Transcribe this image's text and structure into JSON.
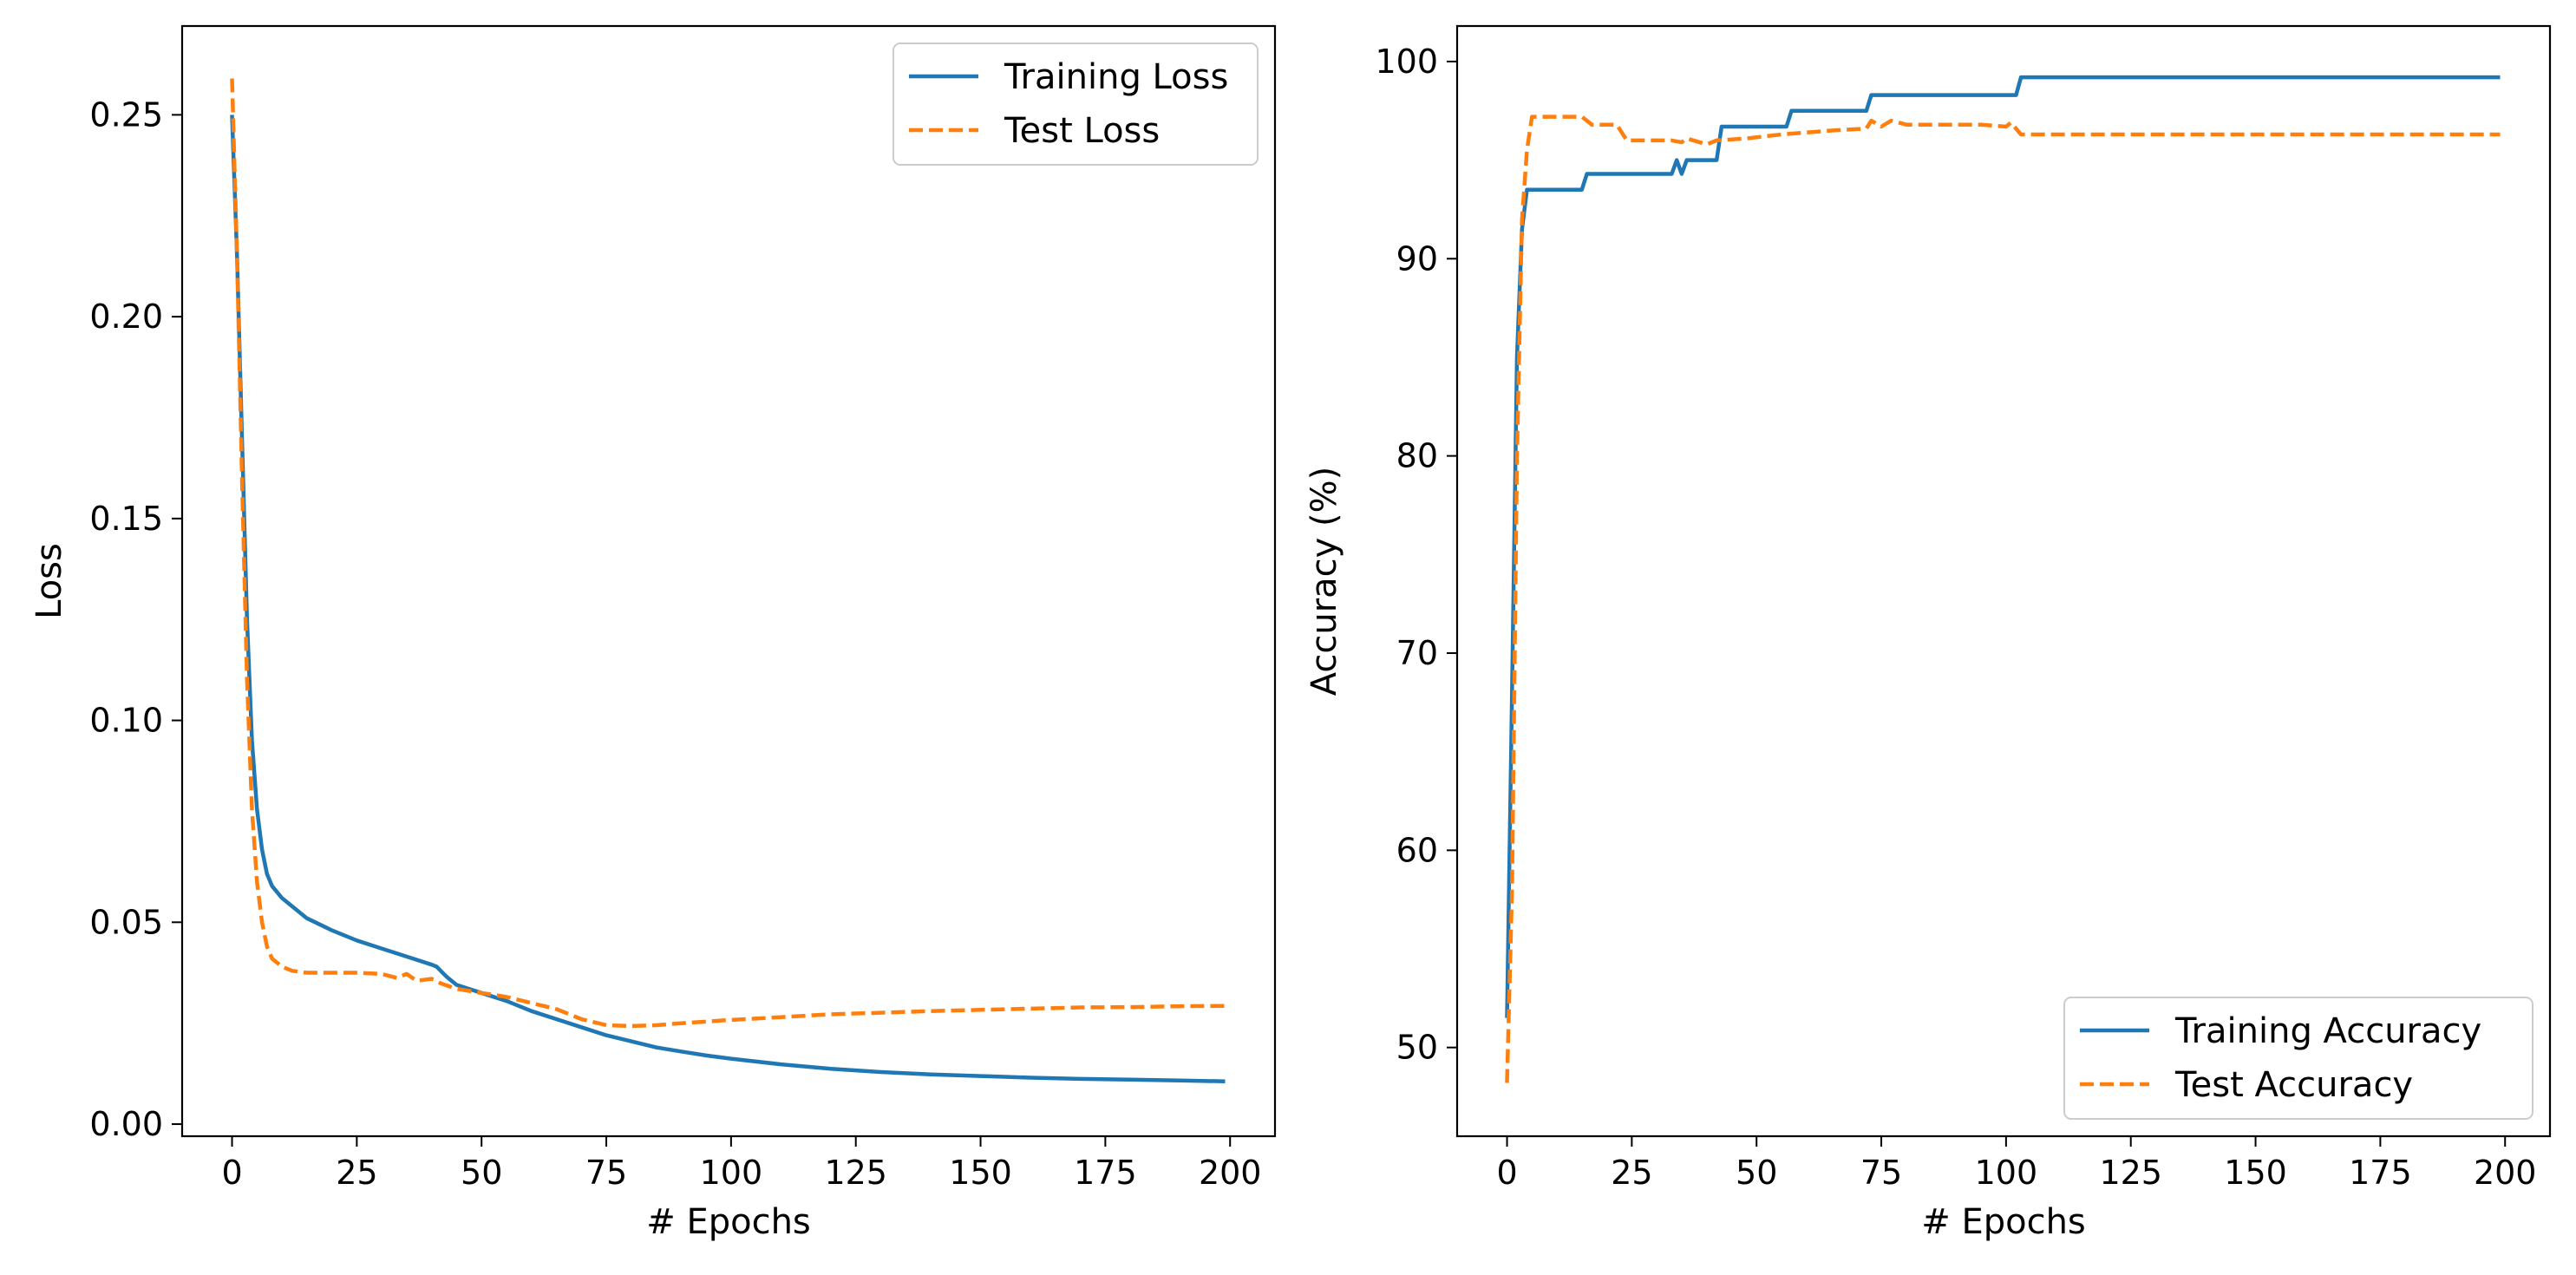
{
  "chart_data": [
    {
      "type": "line",
      "title": "",
      "xlabel": "# Epochs",
      "ylabel": "Loss",
      "xlim": [
        -10,
        209
      ],
      "ylim": [
        -0.003,
        0.272
      ],
      "xticks": [
        0,
        25,
        50,
        75,
        100,
        125,
        150,
        175,
        200
      ],
      "yticks": [
        0.0,
        0.05,
        0.1,
        0.15,
        0.2,
        0.25
      ],
      "ytick_labels": [
        "0.00",
        "0.05",
        "0.10",
        "0.15",
        "0.20",
        "0.25"
      ],
      "grid": false,
      "legend": "top-right",
      "series": [
        {
          "name": "Training Loss",
          "color": "#1f77b4",
          "style": "solid",
          "points": [
            [
              0,
              0.25
            ],
            [
              1,
              0.215
            ],
            [
              2,
              0.17
            ],
            [
              3,
              0.125
            ],
            [
              4,
              0.095
            ],
            [
              5,
              0.078
            ],
            [
              6,
              0.068
            ],
            [
              7,
              0.062
            ],
            [
              8,
              0.059
            ],
            [
              10,
              0.056
            ],
            [
              12,
              0.054
            ],
            [
              15,
              0.051
            ],
            [
              20,
              0.048
            ],
            [
              25,
              0.0455
            ],
            [
              30,
              0.0435
            ],
            [
              35,
              0.0415
            ],
            [
              40,
              0.0395
            ],
            [
              41,
              0.039
            ],
            [
              43,
              0.0365
            ],
            [
              45,
              0.0345
            ],
            [
              50,
              0.0325
            ],
            [
              55,
              0.0305
            ],
            [
              60,
              0.028
            ],
            [
              65,
              0.026
            ],
            [
              70,
              0.024
            ],
            [
              75,
              0.022
            ],
            [
              80,
              0.0205
            ],
            [
              85,
              0.019
            ],
            [
              90,
              0.018
            ],
            [
              95,
              0.017
            ],
            [
              100,
              0.0162
            ],
            [
              110,
              0.0148
            ],
            [
              120,
              0.0137
            ],
            [
              130,
              0.0129
            ],
            [
              140,
              0.0123
            ],
            [
              150,
              0.0119
            ],
            [
              160,
              0.0115
            ],
            [
              170,
              0.0112
            ],
            [
              180,
              0.011
            ],
            [
              190,
              0.0108
            ],
            [
              199,
              0.0106
            ]
          ]
        },
        {
          "name": "Test Loss",
          "color": "#ff7f0e",
          "style": "dashed",
          "points": [
            [
              0,
              0.259
            ],
            [
              1,
              0.215
            ],
            [
              2,
              0.16
            ],
            [
              3,
              0.11
            ],
            [
              4,
              0.078
            ],
            [
              5,
              0.06
            ],
            [
              6,
              0.05
            ],
            [
              7,
              0.044
            ],
            [
              8,
              0.041
            ],
            [
              10,
              0.039
            ],
            [
              12,
              0.038
            ],
            [
              15,
              0.0375
            ],
            [
              20,
              0.0375
            ],
            [
              25,
              0.0375
            ],
            [
              30,
              0.0372
            ],
            [
              33,
              0.0362
            ],
            [
              35,
              0.0372
            ],
            [
              37,
              0.0355
            ],
            [
              40,
              0.036
            ],
            [
              42,
              0.0348
            ],
            [
              45,
              0.0335
            ],
            [
              50,
              0.0325
            ],
            [
              55,
              0.0315
            ],
            [
              60,
              0.03
            ],
            [
              65,
              0.0285
            ],
            [
              70,
              0.026
            ],
            [
              75,
              0.0245
            ],
            [
              80,
              0.0243
            ],
            [
              85,
              0.0245
            ],
            [
              90,
              0.025
            ],
            [
              100,
              0.0258
            ],
            [
              110,
              0.0265
            ],
            [
              120,
              0.0272
            ],
            [
              130,
              0.0276
            ],
            [
              140,
              0.028
            ],
            [
              150,
              0.0283
            ],
            [
              160,
              0.0286
            ],
            [
              170,
              0.0289
            ],
            [
              180,
              0.029
            ],
            [
              190,
              0.0292
            ],
            [
              199,
              0.0293
            ]
          ]
        }
      ]
    },
    {
      "type": "line",
      "title": "",
      "xlabel": "# Epochs",
      "ylabel": "Accuracy (%)",
      "xlim": [
        -10,
        209
      ],
      "ylim": [
        45.5,
        101.8
      ],
      "xticks": [
        0,
        25,
        50,
        75,
        100,
        125,
        150,
        175,
        200
      ],
      "yticks": [
        50,
        60,
        70,
        80,
        90,
        100
      ],
      "ytick_labels": [
        "50",
        "60",
        "70",
        "80",
        "90",
        "100"
      ],
      "grid": false,
      "legend": "bottom-right",
      "series": [
        {
          "name": "Training Accuracy",
          "color": "#1f77b4",
          "style": "solid",
          "points": [
            [
              0,
              51.5
            ],
            [
              1,
              68
            ],
            [
              2,
              85
            ],
            [
              3,
              91.5
            ],
            [
              4,
              93.5
            ],
            [
              15,
              93.5
            ],
            [
              16,
              94.3
            ],
            [
              33,
              94.3
            ],
            [
              34,
              95.0
            ],
            [
              35,
              94.3
            ],
            [
              36,
              95.0
            ],
            [
              42,
              95.0
            ],
            [
              43,
              96.7
            ],
            [
              56,
              96.7
            ],
            [
              57,
              97.5
            ],
            [
              72,
              97.5
            ],
            [
              73,
              98.3
            ],
            [
              102,
              98.3
            ],
            [
              103,
              99.2
            ],
            [
              199,
              99.2
            ]
          ]
        },
        {
          "name": "Test Accuracy",
          "color": "#ff7f0e",
          "style": "dashed",
          "points": [
            [
              0,
              48.2
            ],
            [
              1,
              58
            ],
            [
              2,
              80
            ],
            [
              3,
              92
            ],
            [
              4,
              95.5
            ],
            [
              5,
              97.2
            ],
            [
              15,
              97.2
            ],
            [
              17,
              96.8
            ],
            [
              22,
              96.8
            ],
            [
              24,
              96.0
            ],
            [
              33,
              96.0
            ],
            [
              35,
              95.9
            ],
            [
              36,
              96.1
            ],
            [
              40,
              95.8
            ],
            [
              42,
              96.0
            ],
            [
              48,
              96.1
            ],
            [
              55,
              96.3
            ],
            [
              60,
              96.4
            ],
            [
              65,
              96.5
            ],
            [
              72,
              96.6
            ],
            [
              73,
              97.0
            ],
            [
              75,
              96.7
            ],
            [
              77,
              97.0
            ],
            [
              80,
              96.8
            ],
            [
              95,
              96.8
            ],
            [
              100,
              96.7
            ],
            [
              101,
              96.9
            ],
            [
              103,
              96.3
            ],
            [
              120,
              96.3
            ],
            [
              150,
              96.3
            ],
            [
              199,
              96.3
            ]
          ]
        }
      ]
    }
  ]
}
